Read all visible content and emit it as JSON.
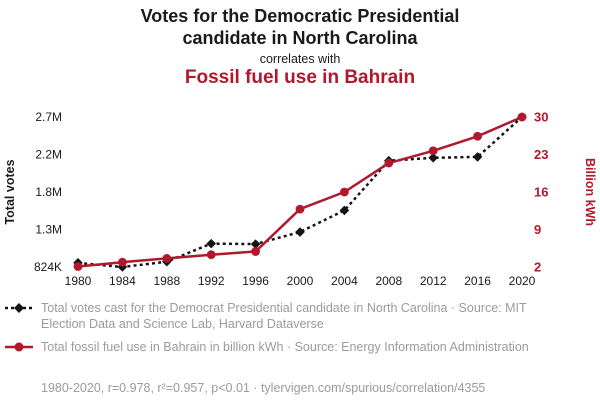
{
  "header": {
    "title": "Votes for the Democratic Presidential\ncandidate in North Carolina",
    "connector": "correlates with",
    "title2": "Fossil fuel use in Bahrain"
  },
  "chart_data": {
    "type": "line",
    "categories": [
      "1980",
      "1984",
      "1988",
      "1992",
      "1996",
      "2000",
      "2004",
      "2008",
      "2012",
      "2016",
      "2020"
    ],
    "axes": {
      "left": {
        "label": "Total votes",
        "min": 824287,
        "max": 2684292,
        "ticks": [
          "824K",
          "1.3M",
          "1.8M",
          "2.2M",
          "2.7M"
        ],
        "color": "#1a1a1a"
      },
      "right": {
        "label": "Billion kWh",
        "min": 2,
        "max": 30,
        "ticks": [
          "2",
          "9",
          "16",
          "23",
          "30"
        ],
        "color": "#b2182b"
      }
    },
    "series": [
      {
        "name": "Total votes cast for the Democrat Presidential candidate in North Carolina",
        "axis": "left",
        "color": "#141414",
        "marker": "diamond",
        "line": "dashed",
        "values": [
          875635,
          824287,
          890167,
          1114042,
          1107849,
          1257692,
          1525849,
          2142651,
          2178391,
          2189316,
          2684292
        ]
      },
      {
        "name": "Total fossil fuel use in Bahrain in billion kWh",
        "axis": "right",
        "color": "#b2182b",
        "marker": "circle",
        "line": "solid",
        "values": [
          2.1,
          2.9,
          3.6,
          4.3,
          4.9,
          12.8,
          16,
          21.4,
          23.7,
          26.4,
          30
        ]
      }
    ],
    "grid": false,
    "legend_position": "bottom"
  },
  "legend": {
    "votes": "Total votes cast for the Democrat Presidential candidate in North Carolina · Source: MIT Election Data and Science Lab, Harvard Dataverse",
    "fossil": "Total fossil fuel use in Bahrain in billion kWh · Source: Energy Information Administration"
  },
  "footer": {
    "text": "1980-2020, r=0.978, r²=0.957, p<0.01 · tylervigen.com/spurious/correlation/4355"
  }
}
